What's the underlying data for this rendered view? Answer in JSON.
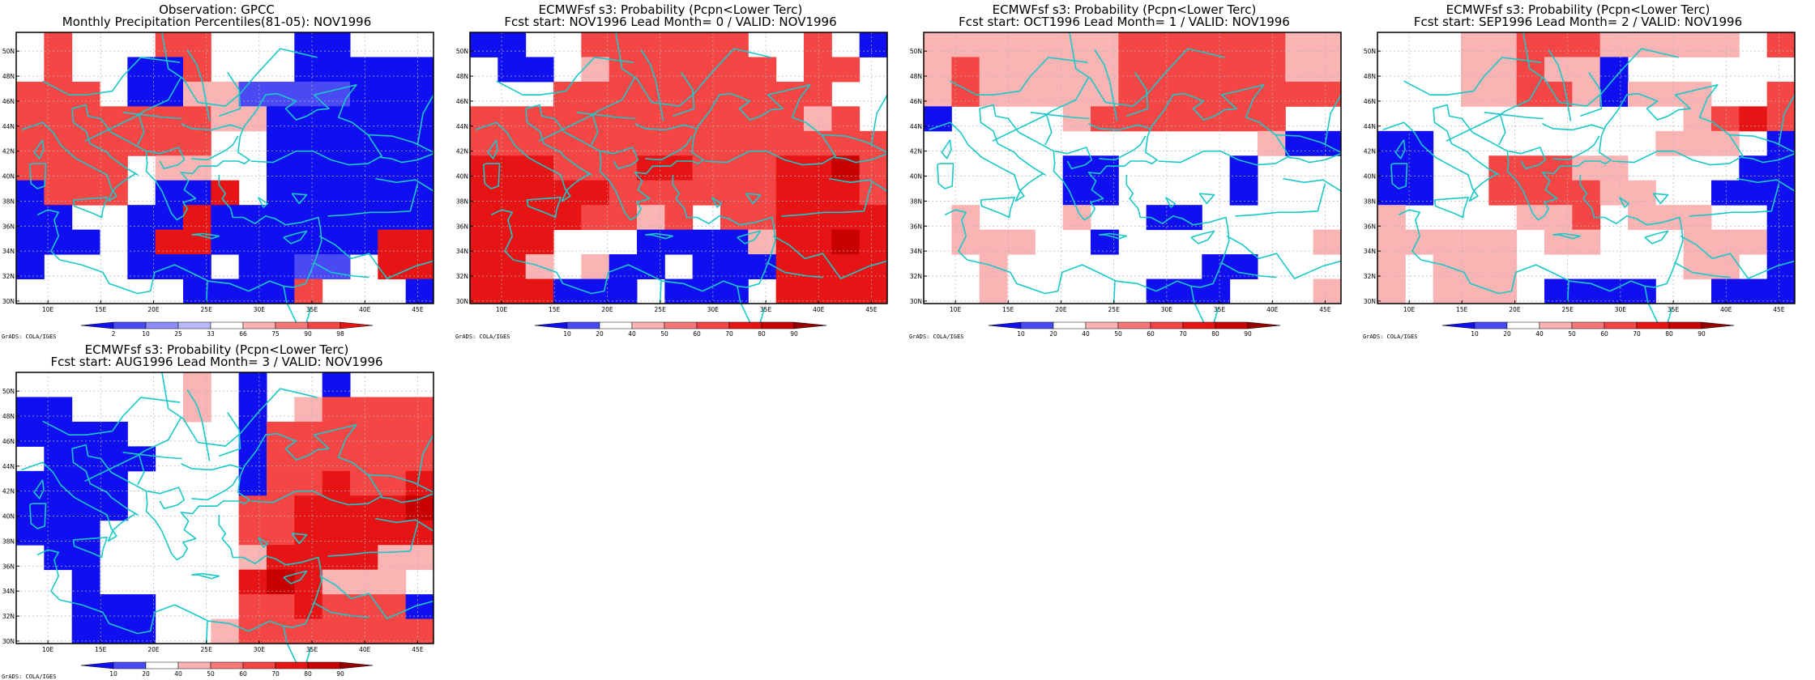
{
  "credit": "GrADS: COLA/IGES",
  "lat_labels": [
    "30N",
    "32N",
    "34N",
    "36N",
    "38N",
    "40N",
    "42N",
    "44N",
    "46N",
    "48N",
    "50N"
  ],
  "lon_labels": [
    "10E",
    "15E",
    "20E",
    "25E",
    "30E",
    "35E",
    "40E",
    "45E"
  ],
  "colors": {
    "blue_dark": "#0f0ff0",
    "blue": "#4a4af5",
    "blue_light": "#8c8cf9",
    "blue_pale": "#b9b9fa",
    "white": "#ffffff",
    "red_pale": "#fab4b4",
    "red_light": "#f77878",
    "red": "#f54646",
    "red_dark": "#e61414",
    "red_darker": "#c80000",
    "red_darkest": "#960000",
    "coast": "#19c8c8"
  },
  "panels": [
    {
      "title1": "Observation: GPCC",
      "title2": "Monthly Precipitation Percentiles(81-05): NOV1996",
      "legend": {
        "labels": [
          "2",
          "10",
          "25",
          "33",
          "66",
          "75",
          "90",
          "98"
        ],
        "colors": [
          "#0f0ff0",
          "#4a4af5",
          "#8c8cf9",
          "#b9b9fa",
          "#ffffff",
          "#fab4b4",
          "#f77878",
          "#f54646",
          "#e61414"
        ]
      },
      "grid": [
        "WRWWWRRWWWBBWWW",
        "WRWWBBRWWWBBBBB",
        "RRRWBBPPLLLLBBB",
        "RRRRRRRPPBBBBBB",
        "RRRRRRRWWBBBBBB",
        "RRRRWPPWWBBBBBB",
        "BRRRWBBDWBBBBBB",
        "BBWWBBDBBBBBBBB",
        "BBBWBDDBBBBBBDD",
        "BWWWBBBWBBLLWDD",
        "WWWWWWBBBBRWWWB"
      ]
    },
    {
      "title1": "ECMWFsf s3: Probability (Pcpn<Lower Terc)",
      "title2": "Fcst start: NOV1996  Lead Month= 0 / VALID: NOV1996",
      "legend": {
        "labels": [
          "10",
          "20",
          "40",
          "50",
          "60",
          "70",
          "80",
          "90"
        ],
        "colors": [
          "#0f0ff0",
          "#4a4af5",
          "#ffffff",
          "#fab4b4",
          "#f77878",
          "#f54646",
          "#e61414",
          "#c80000",
          "#960000"
        ]
      },
      "grid": [
        "BBWWRRRRRRWWRWB",
        "WBBWPRRRRRRWRRW",
        "WWWRRRRRRRRRRWW",
        "RRRRRRRRRRRRPRW",
        "RRRRRRRRRRRRRRR",
        "DDDRRRDDRRRDDXR",
        "DDDDDRRRRRRDDDR",
        "DDDDRRPRWRRDDDD",
        "DDDWWWBBBBPDDXD",
        "DDPWPBBWBBBDDDD",
        "DDDBBBWBBBWDDDD"
      ]
    },
    {
      "title1": "ECMWFsf s3: Probability (Pcpn<Lower Terc)",
      "title2": "Fcst start: OCT1996  Lead Month= 1 / VALID: NOV1996",
      "legend": {
        "labels": [
          "10",
          "20",
          "40",
          "50",
          "60",
          "70",
          "80",
          "90"
        ],
        "colors": [
          "#0f0ff0",
          "#4a4af5",
          "#ffffff",
          "#fab4b4",
          "#f77878",
          "#f54646",
          "#e61414",
          "#c80000",
          "#960000"
        ]
      },
      "grid": [
        "PPPPPPPRRRRRRPP",
        "PRPPPPPRRRRRRPP",
        "PRPPPPPRRRRRRRR",
        "BWWWWPRRRRRRRWW",
        "WWWWWWWWWWWWPBB",
        "WWWWWBBWWWWBWWW",
        "WWWWWBBWWWWBWWW",
        "WPWWWPWWBBWWWWW",
        "WPPPWWBWWWWWWWP",
        "WWPWWWWWWWBBWWW",
        "WWPWWWWWBBBWWWP"
      ]
    },
    {
      "title1": "ECMWFsf s3: Probability (Pcpn<Lower Terc)",
      "title2": "Fcst start: SEP1996  Lead Month= 2 / VALID: NOV1996",
      "legend": {
        "labels": [
          "10",
          "20",
          "40",
          "50",
          "60",
          "70",
          "80",
          "90"
        ],
        "colors": [
          "#0f0ff0",
          "#4a4af5",
          "#ffffff",
          "#fab4b4",
          "#f77878",
          "#f54646",
          "#e61414",
          "#c80000",
          "#960000"
        ]
      },
      "grid": [
        "WWWPPRRRPPPPPWR",
        "WWWPPRPPBWWWWWW",
        "WWWPPRRPBPPPWWR",
        "WWWWWWWWWWWPRDR",
        "BBWWWWWWWWPPPWB",
        "BBWWRRRPPWWWWBB",
        "BBWWRRRRPPWWBBB",
        "PWWWWPPRWPPPWWB",
        "PPPPPWPPWWWPPPB",
        "PWPPPWWWWWWPPWB",
        "PWPPPWBBBBWWBBB"
      ]
    },
    {
      "title1": "ECMWFsf s3: Probability (Pcpn<Lower Terc)",
      "title2": "Fcst start: AUG1996  Lead Month= 3 / VALID: NOV1996",
      "legend": {
        "labels": [
          "10",
          "20",
          "40",
          "50",
          "60",
          "70",
          "80",
          "90"
        ],
        "colors": [
          "#0f0ff0",
          "#4a4af5",
          "#ffffff",
          "#fab4b4",
          "#f77878",
          "#f54646",
          "#e61414",
          "#c80000",
          "#960000"
        ]
      },
      "grid": [
        "WWWWWWPWBWWBWWW",
        "BBWWWWPWBWPRRRR",
        "BBBBWWWWBRRRRRR",
        "WBBBBWWWBRRRRRR",
        "BBBBWWWWBRRDRRD",
        "BBBBWWWWRRDDDDX",
        "BBBWWWWWRRDDDDD",
        "WBBWWWWWPDDDDPP",
        "WWBWWWWWDXDPPPW",
        "WWBBBWWWRRDRRRB",
        "WWBBBWWPRRRRRRR"
      ]
    }
  ]
}
